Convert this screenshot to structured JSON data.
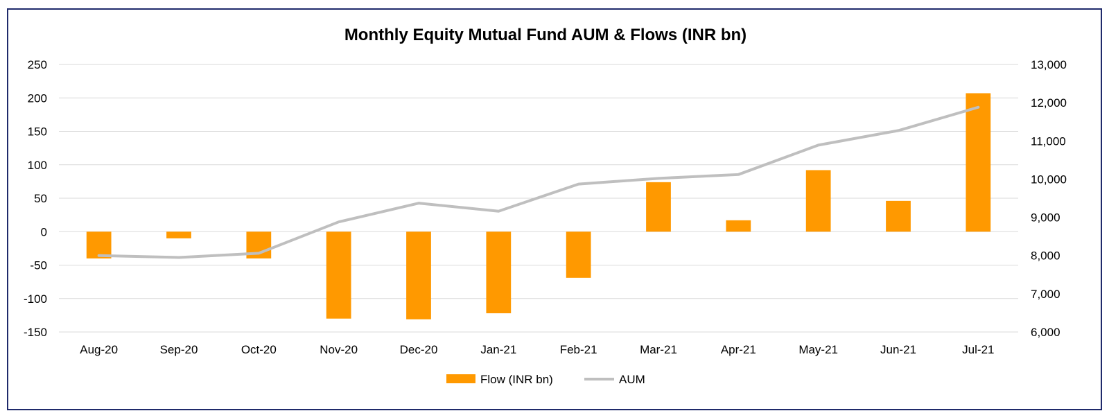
{
  "chart_data": {
    "type": "bar+line",
    "title": "Monthly Equity Mutual Fund AUM & Flows (INR bn)",
    "categories": [
      "Aug-20",
      "Sep-20",
      "Oct-20",
      "Nov-20",
      "Dec-20",
      "Jan-21",
      "Feb-21",
      "Mar-21",
      "Apr-21",
      "May-21",
      "Jun-21",
      "Jul-21"
    ],
    "series": [
      {
        "name": "Flow (INR bn)",
        "type": "bar",
        "axis": "left",
        "color": "#ff9900",
        "values": [
          -40,
          -10,
          -40,
          -130,
          -131,
          -122,
          -69,
          74,
          17,
          92,
          46,
          207
        ]
      },
      {
        "name": "AUM",
        "type": "line",
        "axis": "right",
        "color": "#bfbfbf",
        "values": [
          8000,
          7950,
          8060,
          8880,
          9370,
          9160,
          9870,
          10020,
          10120,
          10890,
          11270,
          11880
        ]
      }
    ],
    "left_axis": {
      "min": -150,
      "max": 250,
      "step": 50,
      "tick_labels": [
        "-150",
        "-100",
        "-50",
        "0",
        "50",
        "100",
        "150",
        "200",
        "250"
      ]
    },
    "right_axis": {
      "min": 6000,
      "max": 13000,
      "step": 1000,
      "tick_labels": [
        "6,000",
        "7,000",
        "8,000",
        "9,000",
        "10,000",
        "11,000",
        "12,000",
        "13,000"
      ]
    },
    "grid": true,
    "legend_position": "bottom"
  }
}
